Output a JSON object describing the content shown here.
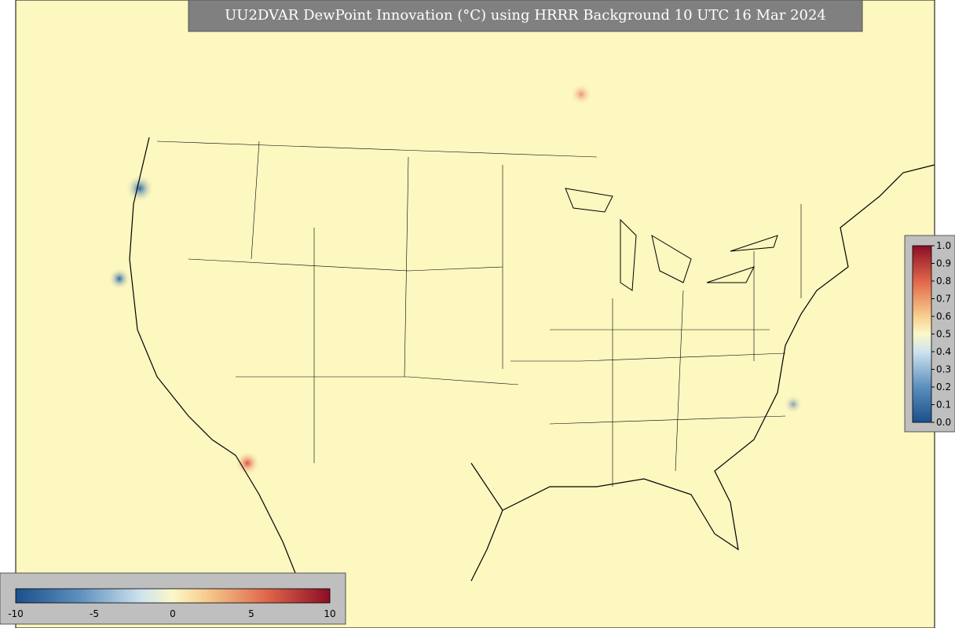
{
  "title": "UU2DVAR DewPoint Innovation (°C) using HRRR Background 10 UTC 16 Mar 2024",
  "bottom_colorbar": {
    "ticks": [
      "-10",
      "-5",
      "0",
      "5",
      "10"
    ]
  },
  "right_colorbar": {
    "ticks": [
      "0.0",
      "0.1",
      "0.2",
      "0.3",
      "0.4",
      "0.5",
      "0.6",
      "0.7",
      "0.8",
      "0.9",
      "1.0"
    ]
  }
}
